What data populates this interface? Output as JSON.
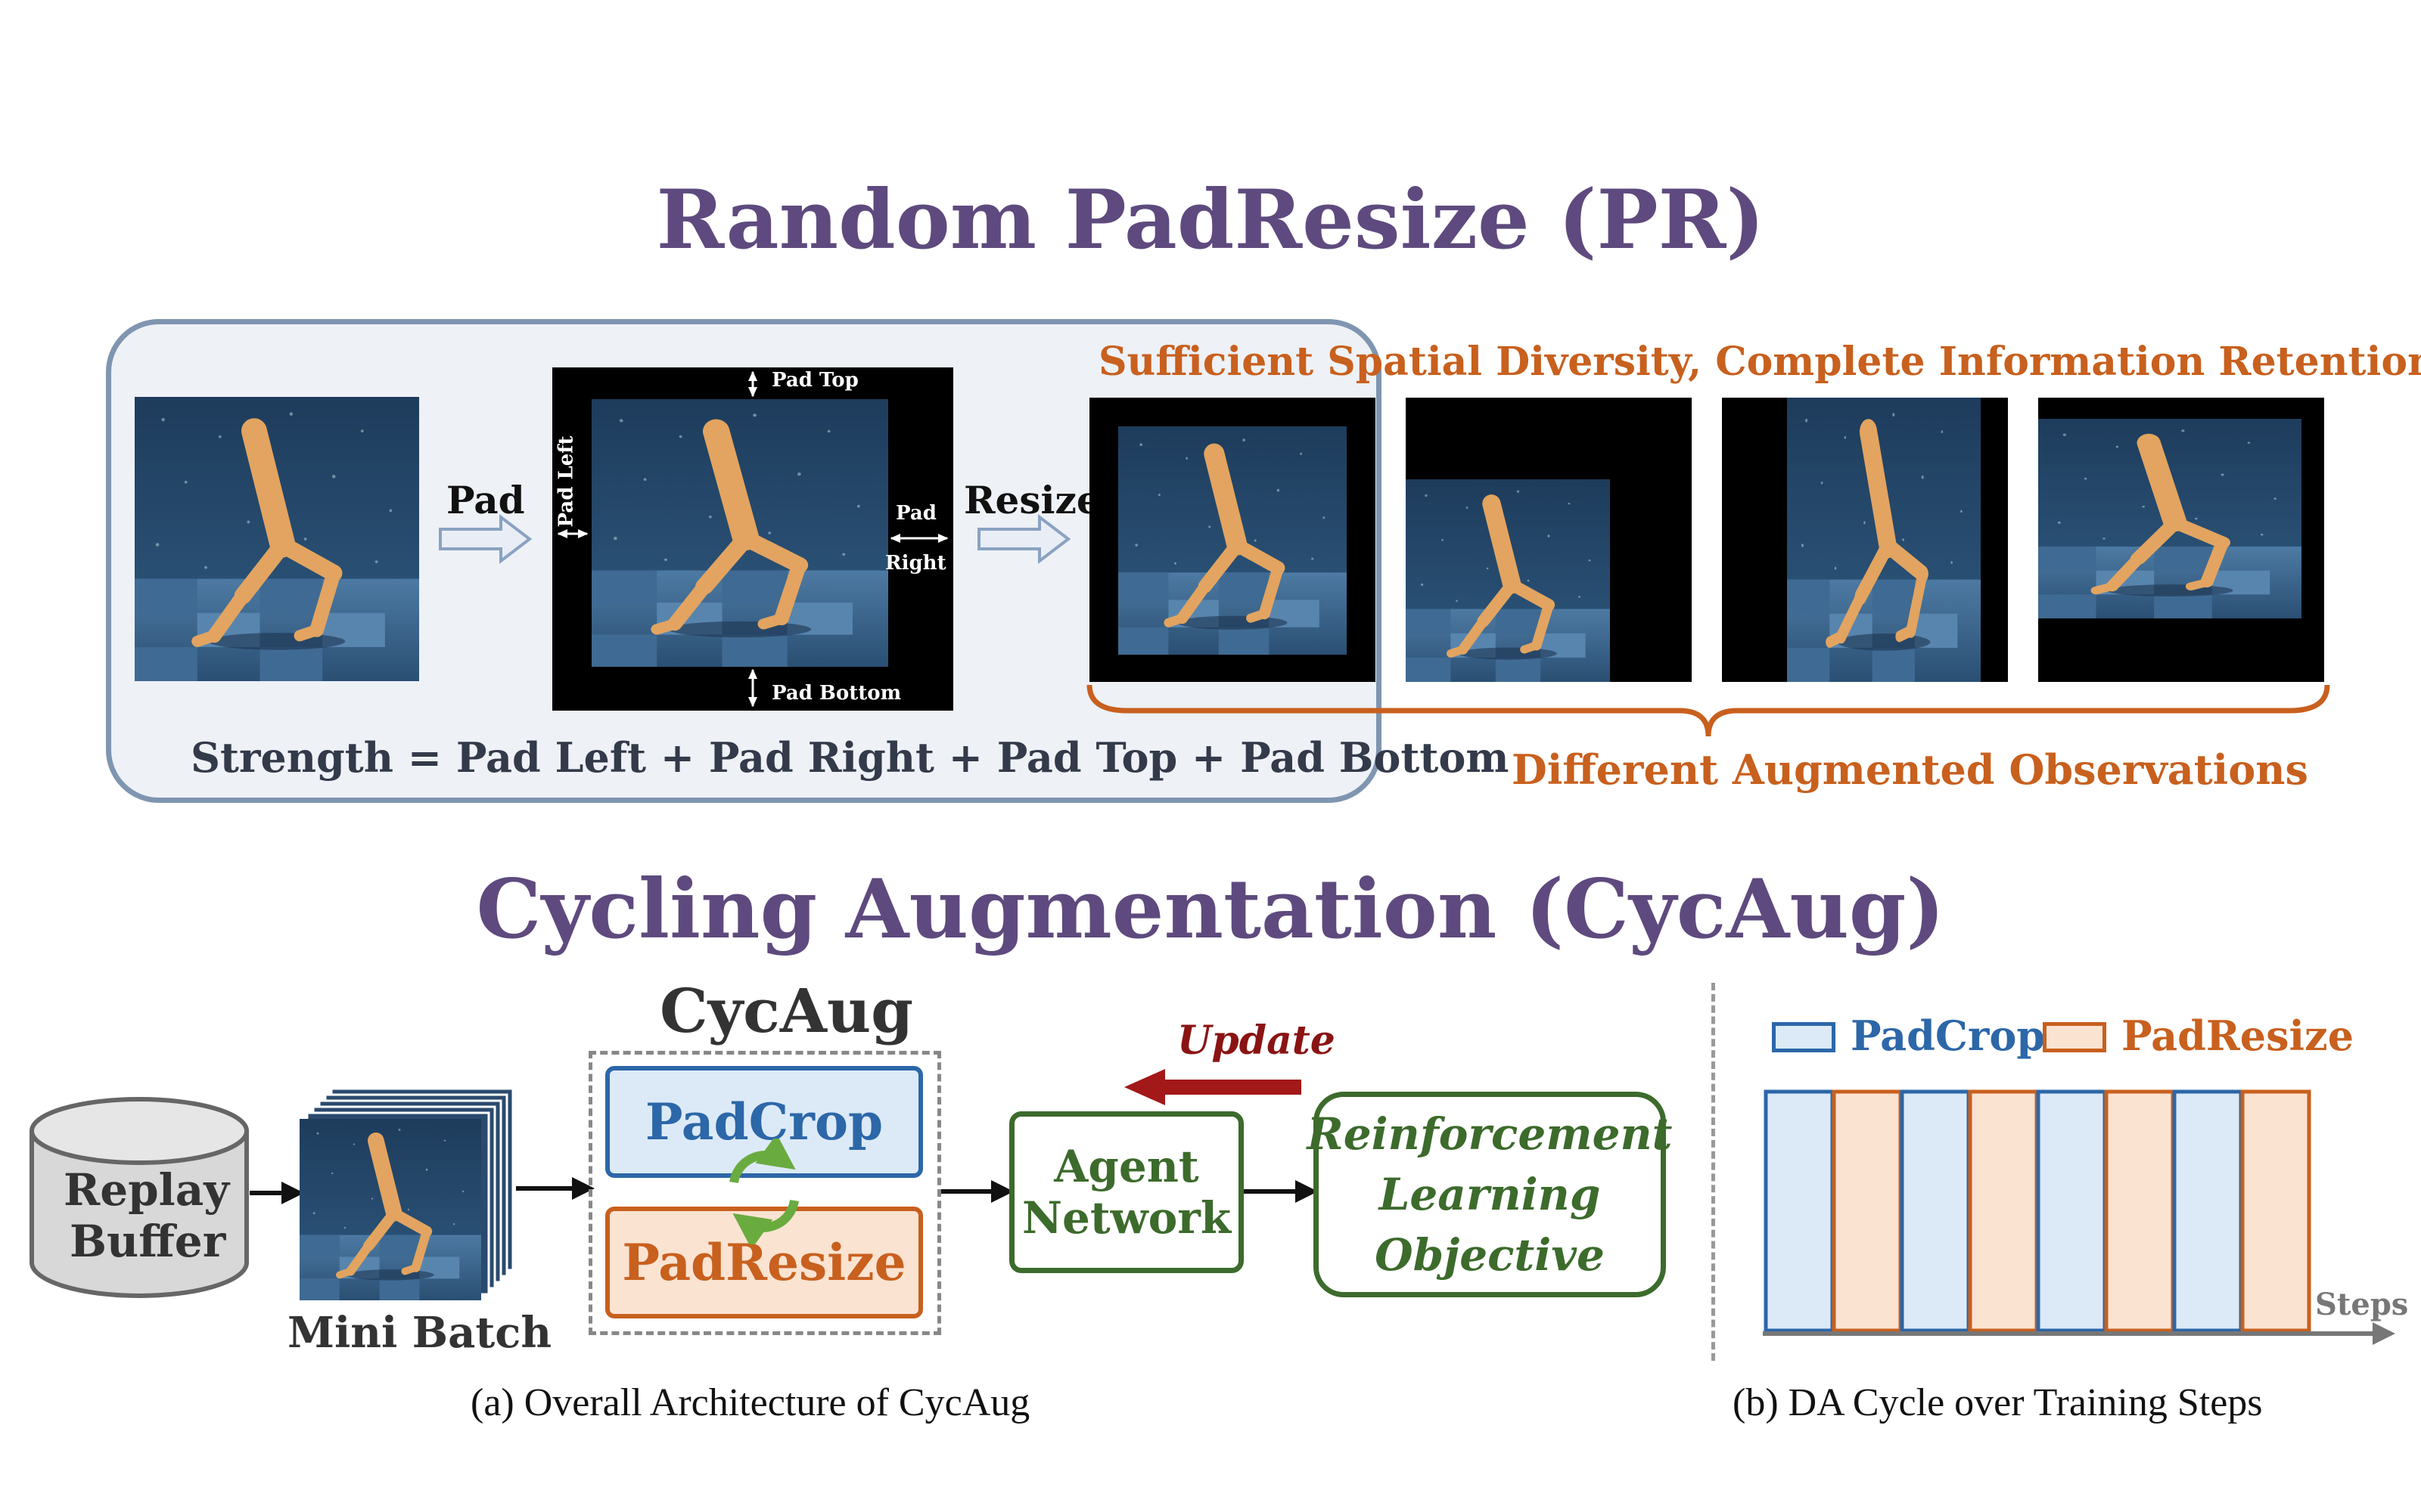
{
  "pr": {
    "title": "Random PadResize (PR)",
    "pad_label": "Pad",
    "resize_label": "Resize",
    "pad_top": "Pad Top",
    "pad_bottom": "Pad Bottom",
    "pad_left": "Pad Left",
    "pad_right_1": "Pad",
    "pad_right_2": "Right",
    "strength_formula": "Strength = Pad Left + Pad Right + Pad Top + Pad Bottom",
    "diversity_heading": "Sufficient Spatial Diversity, Complete Information Retention",
    "augmented_label": "Different Augmented Observations"
  },
  "cycaug": {
    "title": "Cycling Augmentation (CycAug)",
    "replay_buffer": [
      "Replay",
      "Buffer"
    ],
    "mini_batch": "Mini Batch",
    "module_title": "CycAug",
    "padcrop": "PadCrop",
    "padresize": "PadResize",
    "agent_network": [
      "Agent",
      "Network"
    ],
    "update": "Update",
    "rl_objective": [
      "Reinforcement",
      "Learning",
      "Objective"
    ],
    "caption_a": "(a) Overall Architecture of CycAug"
  },
  "cycle": {
    "legend_padcrop": "PadCrop",
    "legend_padresize": "PadResize",
    "steps_label": "Steps",
    "sequence": [
      "PadCrop",
      "PadResize",
      "PadCrop",
      "PadResize",
      "PadCrop",
      "PadResize",
      "PadCrop",
      "PadResize"
    ],
    "caption_b": "(b) DA Cycle over Training Steps"
  },
  "colors": {
    "title_purple": "#5e4a7e",
    "orange": "#c8601e",
    "blue": "#2c67a8",
    "green": "#3c6b2c",
    "dark_red": "#8a1414",
    "padcrop_fill": "#dceaf8",
    "padresize_fill": "#fbe3d2"
  }
}
